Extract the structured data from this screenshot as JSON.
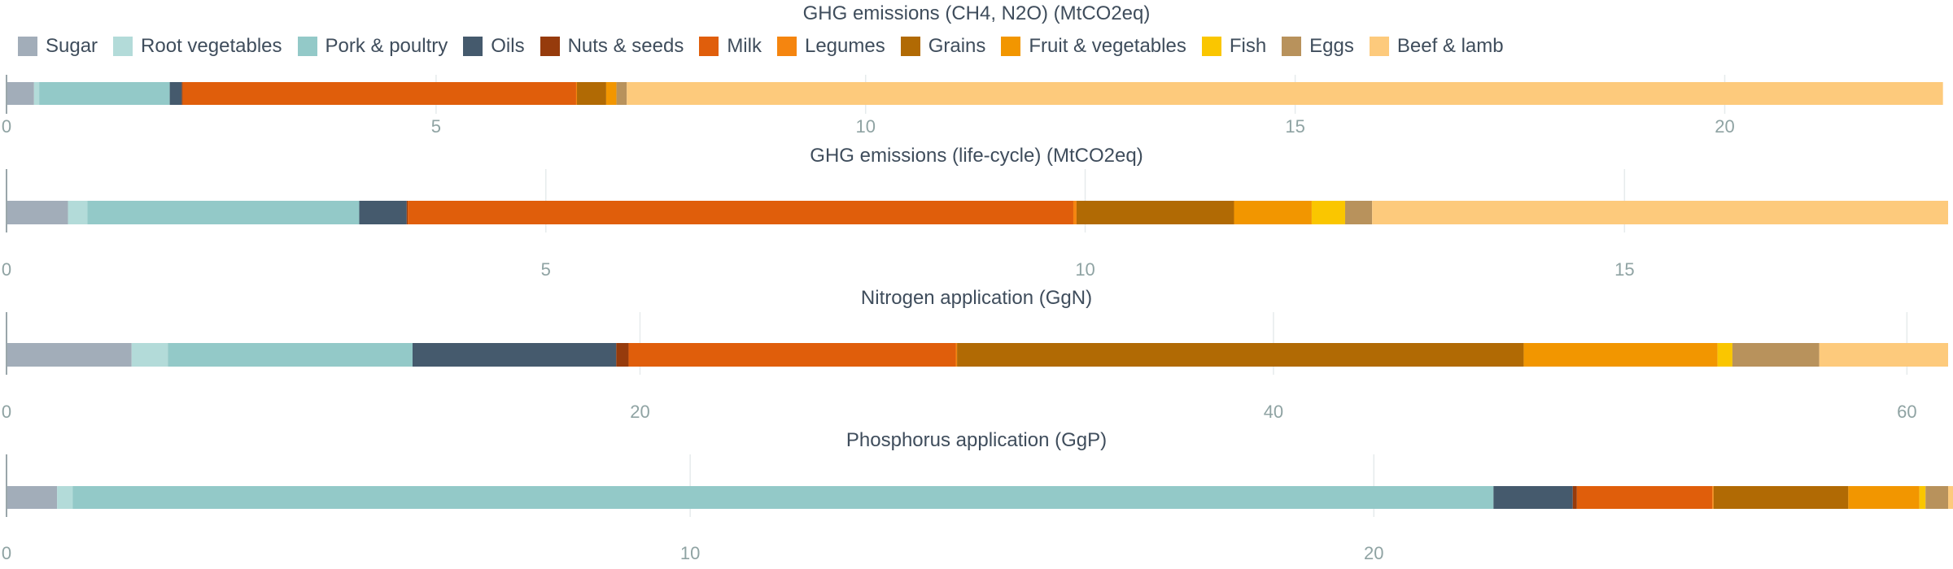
{
  "legend": [
    {
      "name": "Sugar",
      "color": "#a2adb9"
    },
    {
      "name": "Root vegetables",
      "color": "#b3dbd9"
    },
    {
      "name": "Pork & poultry",
      "color": "#93c9c8"
    },
    {
      "name": "Oils",
      "color": "#455a6d"
    },
    {
      "name": "Nuts & seeds",
      "color": "#963b0c"
    },
    {
      "name": "Milk",
      "color": "#e05e0b"
    },
    {
      "name": "Legumes",
      "color": "#f5850f"
    },
    {
      "name": "Grains",
      "color": "#b16a04"
    },
    {
      "name": "Fruit & vegetables",
      "color": "#f29600"
    },
    {
      "name": "Fish",
      "color": "#fac600"
    },
    {
      "name": "Eggs",
      "color": "#b8925c"
    },
    {
      "name": "Beef & lamb",
      "color": "#fdca7c"
    }
  ],
  "chart_data": [
    {
      "type": "bar",
      "orientation": "horizontal",
      "stacked": true,
      "title": "GHG emissions (CH4, N2O) (MtCO2eq)",
      "xlim": [
        0,
        22.6
      ],
      "ticks": [
        0,
        5,
        10,
        15,
        20
      ],
      "series": [
        {
          "name": "Sugar",
          "values": [
            0.32
          ]
        },
        {
          "name": "Root vegetables",
          "values": [
            0.06
          ]
        },
        {
          "name": "Pork & poultry",
          "values": [
            1.52
          ]
        },
        {
          "name": "Oils",
          "values": [
            0.14
          ]
        },
        {
          "name": "Nuts & seeds",
          "values": [
            0.01
          ]
        },
        {
          "name": "Milk",
          "values": [
            4.58
          ]
        },
        {
          "name": "Legumes",
          "values": [
            0.01
          ]
        },
        {
          "name": "Grains",
          "values": [
            0.34
          ]
        },
        {
          "name": "Fruit & vegetables",
          "values": [
            0.12
          ]
        },
        {
          "name": "Fish",
          "values": [
            0.0
          ]
        },
        {
          "name": "Eggs",
          "values": [
            0.12
          ]
        },
        {
          "name": "Beef & lamb",
          "values": [
            15.32
          ]
        }
      ]
    },
    {
      "type": "bar",
      "orientation": "horizontal",
      "stacked": true,
      "title": "GHG emissions (life-cycle) (MtCO2eq)",
      "xlim": [
        0,
        18.0
      ],
      "ticks": [
        0,
        5,
        10,
        15
      ],
      "series": [
        {
          "name": "Sugar",
          "values": [
            0.57
          ]
        },
        {
          "name": "Root vegetables",
          "values": [
            0.18
          ]
        },
        {
          "name": "Pork & poultry",
          "values": [
            2.52
          ]
        },
        {
          "name": "Oils",
          "values": [
            0.44
          ]
        },
        {
          "name": "Nuts & seeds",
          "values": [
            0.01
          ]
        },
        {
          "name": "Milk",
          "values": [
            6.17
          ]
        },
        {
          "name": "Legumes",
          "values": [
            0.03
          ]
        },
        {
          "name": "Grains",
          "values": [
            1.46
          ]
        },
        {
          "name": "Fruit & vegetables",
          "values": [
            0.72
          ]
        },
        {
          "name": "Fish",
          "values": [
            0.31
          ]
        },
        {
          "name": "Eggs",
          "values": [
            0.25
          ]
        },
        {
          "name": "Beef & lamb",
          "values": [
            5.34
          ]
        }
      ]
    },
    {
      "type": "bar",
      "orientation": "horizontal",
      "stacked": true,
      "title": "Nitrogen application (GgN)",
      "xlim": [
        0,
        61.3
      ],
      "ticks": [
        0,
        20,
        40,
        60
      ],
      "series": [
        {
          "name": "Sugar",
          "values": [
            3.95
          ]
        },
        {
          "name": "Root vegetables",
          "values": [
            1.15
          ]
        },
        {
          "name": "Pork & poultry",
          "values": [
            7.72
          ]
        },
        {
          "name": "Oils",
          "values": [
            6.43
          ]
        },
        {
          "name": "Nuts & seeds",
          "values": [
            0.39
          ]
        },
        {
          "name": "Milk",
          "values": [
            10.33
          ]
        },
        {
          "name": "Legumes",
          "values": [
            0.04
          ]
        },
        {
          "name": "Grains",
          "values": [
            17.89
          ]
        },
        {
          "name": "Fruit & vegetables",
          "values": [
            6.12
          ]
        },
        {
          "name": "Fish",
          "values": [
            0.47
          ]
        },
        {
          "name": "Eggs",
          "values": [
            2.74
          ]
        },
        {
          "name": "Beef & lamb",
          "values": [
            4.07
          ]
        }
      ]
    },
    {
      "type": "bar",
      "orientation": "horizontal",
      "stacked": true,
      "title": "Phosphorus application (GgP)",
      "xlim": [
        0,
        28.4
      ],
      "ticks": [
        0,
        10,
        20
      ],
      "series": [
        {
          "name": "Sugar",
          "values": [
            0.74
          ]
        },
        {
          "name": "Root vegetables",
          "values": [
            0.23
          ]
        },
        {
          "name": "Pork & poultry",
          "values": [
            20.78
          ]
        },
        {
          "name": "Oils",
          "values": [
            1.16
          ]
        },
        {
          "name": "Nuts & seeds",
          "values": [
            0.06
          ]
        },
        {
          "name": "Milk",
          "values": [
            1.98
          ]
        },
        {
          "name": "Legumes",
          "values": [
            0.02
          ]
        },
        {
          "name": "Grains",
          "values": [
            1.97
          ]
        },
        {
          "name": "Fruit & vegetables",
          "values": [
            1.04
          ]
        },
        {
          "name": "Fish",
          "values": [
            0.09
          ]
        },
        {
          "name": "Eggs",
          "values": [
            0.33
          ]
        },
        {
          "name": "Beef & lamb",
          "values": [
            0.5
          ]
        }
      ]
    }
  ]
}
